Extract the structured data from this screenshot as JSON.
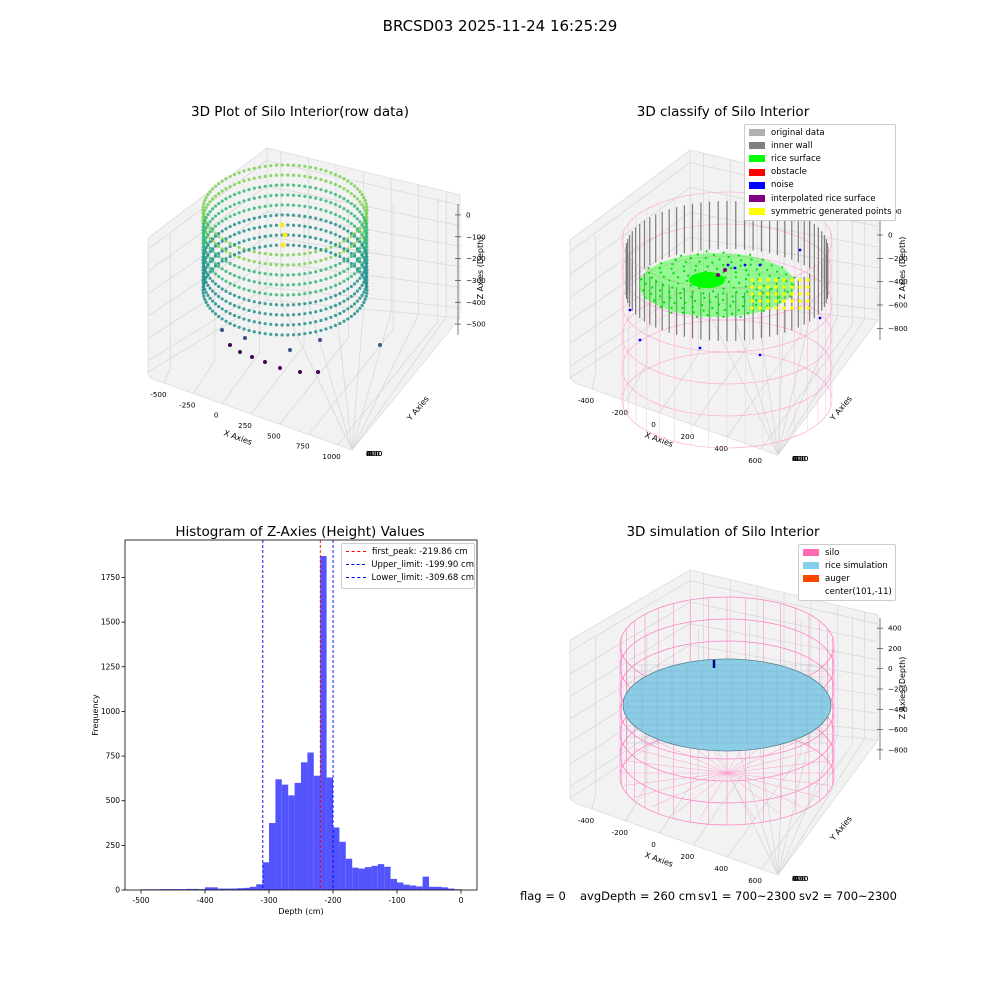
{
  "suptitle": "BRCSD03 2025-11-24 16:25:29",
  "footer": {
    "flag": "flag = 0",
    "avg": "avgDepth = 260 cm",
    "sv1": "sv1 = 700~2300",
    "sv2": "sv2 = 700~2300"
  },
  "chart_data": [
    {
      "type": "scatter",
      "projection": "3d",
      "title": "3D Plot of Silo Interior(row data)",
      "xlabel": "X Axies",
      "ylabel": "Y Axies",
      "zlabel": "Z Axies (Depth)",
      "xticks": [
        "-500",
        "-250",
        "0",
        "250",
        "500",
        "750",
        "1000"
      ],
      "yticks": [
        "-600",
        "-400",
        "-200",
        "0",
        "200",
        "400",
        "600"
      ],
      "zticks": [
        "0",
        "−100",
        "−200",
        "−300",
        "−400",
        "−500"
      ],
      "xlim": [
        -550,
        1050
      ],
      "ylim": [
        -650,
        650
      ],
      "zlim": [
        -520,
        20
      ],
      "colormap": "viridis",
      "grid": true
    },
    {
      "type": "scatter",
      "projection": "3d",
      "title": "3D classify of Silo Interior",
      "xlabel": "X Axies",
      "ylabel": "Y Axies",
      "zlabel": "Z Axies (Depth)",
      "xticks": [
        "-400",
        "-200",
        "0",
        "200",
        "400",
        "600"
      ],
      "yticks": [
        "-600",
        "-400",
        "-200",
        "0",
        "200",
        "400",
        "600"
      ],
      "zticks": [
        "200",
        "0",
        "−200",
        "−400",
        "−600",
        "−800"
      ],
      "xlim": [
        -450,
        650
      ],
      "ylim": [
        -650,
        650
      ],
      "zlim": [
        -900,
        250
      ],
      "legend_position": "top-right",
      "legend": [
        {
          "label": "original data",
          "color": "#b0b0b0"
        },
        {
          "label": "inner wall",
          "color": "#808080"
        },
        {
          "label": "rice surface",
          "color": "#00ff00"
        },
        {
          "label": "obstacle",
          "color": "#ff0000"
        },
        {
          "label": "noise",
          "color": "#0000ff"
        },
        {
          "label": "interpolated rice surface",
          "color": "#800080"
        },
        {
          "label": "symmetric generated points",
          "color": "#ffff00"
        }
      ],
      "grid": true
    },
    {
      "type": "bar",
      "subtype": "histogram",
      "title": "Histogram of Z-Axies (Height) Values",
      "xlabel": "Depth (cm)",
      "ylabel": "Frequency",
      "xlim": [
        -525,
        25
      ],
      "ylim": [
        0,
        1960
      ],
      "xticks": [
        -500,
        -400,
        -300,
        -200,
        -100,
        0
      ],
      "yticks": [
        0,
        250,
        500,
        750,
        1000,
        1250,
        1500,
        1750
      ],
      "bar_color": "#4b4bff",
      "bin_width": 10,
      "bins": [
        {
          "x0": -500,
          "count": 4
        },
        {
          "x0": -490,
          "count": 4
        },
        {
          "x0": -480,
          "count": 4
        },
        {
          "x0": -470,
          "count": 5
        },
        {
          "x0": -460,
          "count": 5
        },
        {
          "x0": -450,
          "count": 5
        },
        {
          "x0": -440,
          "count": 5
        },
        {
          "x0": -430,
          "count": 6
        },
        {
          "x0": -420,
          "count": 6
        },
        {
          "x0": -410,
          "count": 5
        },
        {
          "x0": -400,
          "count": 15
        },
        {
          "x0": -390,
          "count": 15
        },
        {
          "x0": -380,
          "count": 8
        },
        {
          "x0": -370,
          "count": 8
        },
        {
          "x0": -360,
          "count": 8
        },
        {
          "x0": -350,
          "count": 10
        },
        {
          "x0": -340,
          "count": 12
        },
        {
          "x0": -330,
          "count": 18
        },
        {
          "x0": -320,
          "count": 32
        },
        {
          "x0": -310,
          "count": 155
        },
        {
          "x0": -300,
          "count": 375
        },
        {
          "x0": -290,
          "count": 620
        },
        {
          "x0": -280,
          "count": 590
        },
        {
          "x0": -270,
          "count": 530
        },
        {
          "x0": -260,
          "count": 600
        },
        {
          "x0": -250,
          "count": 715
        },
        {
          "x0": -240,
          "count": 770
        },
        {
          "x0": -230,
          "count": 640
        },
        {
          "x0": -220,
          "count": 1870
        },
        {
          "x0": -210,
          "count": 630
        },
        {
          "x0": -200,
          "count": 350
        },
        {
          "x0": -190,
          "count": 270
        },
        {
          "x0": -180,
          "count": 175
        },
        {
          "x0": -170,
          "count": 125
        },
        {
          "x0": -160,
          "count": 120
        },
        {
          "x0": -150,
          "count": 128
        },
        {
          "x0": -140,
          "count": 135
        },
        {
          "x0": -130,
          "count": 145
        },
        {
          "x0": -120,
          "count": 130
        },
        {
          "x0": -110,
          "count": 62
        },
        {
          "x0": -100,
          "count": 42
        },
        {
          "x0": -90,
          "count": 30
        },
        {
          "x0": -80,
          "count": 25
        },
        {
          "x0": -70,
          "count": 20
        },
        {
          "x0": -60,
          "count": 75
        },
        {
          "x0": -50,
          "count": 18
        },
        {
          "x0": -40,
          "count": 18
        },
        {
          "x0": -30,
          "count": 15
        },
        {
          "x0": -20,
          "count": 8
        },
        {
          "x0": -10,
          "count": 4
        }
      ],
      "vlines": [
        {
          "label": "first_peak: -219.86 cm",
          "x": -219.86,
          "color": "#ff0000"
        },
        {
          "label": "Upper_limit: -199.90 cm",
          "x": -199.9,
          "color": "#0000ff"
        },
        {
          "label": "Lower_limit: -309.68 cm",
          "x": -309.68,
          "color": "#0000ff"
        }
      ],
      "legend_position": "top-right"
    },
    {
      "type": "surface",
      "projection": "3d",
      "title": "3D simulation of Silo Interior",
      "xlabel": "X Axies",
      "ylabel": "Y Axies",
      "zlabel": "Z Axies (Depth)",
      "xticks": [
        "-400",
        "-200",
        "0",
        "200",
        "400",
        "600"
      ],
      "yticks": [
        "-600",
        "-400",
        "-200",
        "0",
        "200",
        "400",
        "600"
      ],
      "zticks": [
        "400",
        "200",
        "0",
        "−200",
        "−400",
        "−600",
        "−800"
      ],
      "xlim": [
        -450,
        650
      ],
      "ylim": [
        -650,
        650
      ],
      "zlim": [
        -900,
        450
      ],
      "legend_position": "top-right",
      "legend": [
        {
          "label": "silo",
          "color": "#ff69b4"
        },
        {
          "label": "rice simulation",
          "color": "#87ceeb"
        },
        {
          "label": "auger",
          "color": "#ff4500"
        },
        {
          "label": "center(101,-11)",
          "color": ""
        }
      ],
      "grid": true
    }
  ]
}
